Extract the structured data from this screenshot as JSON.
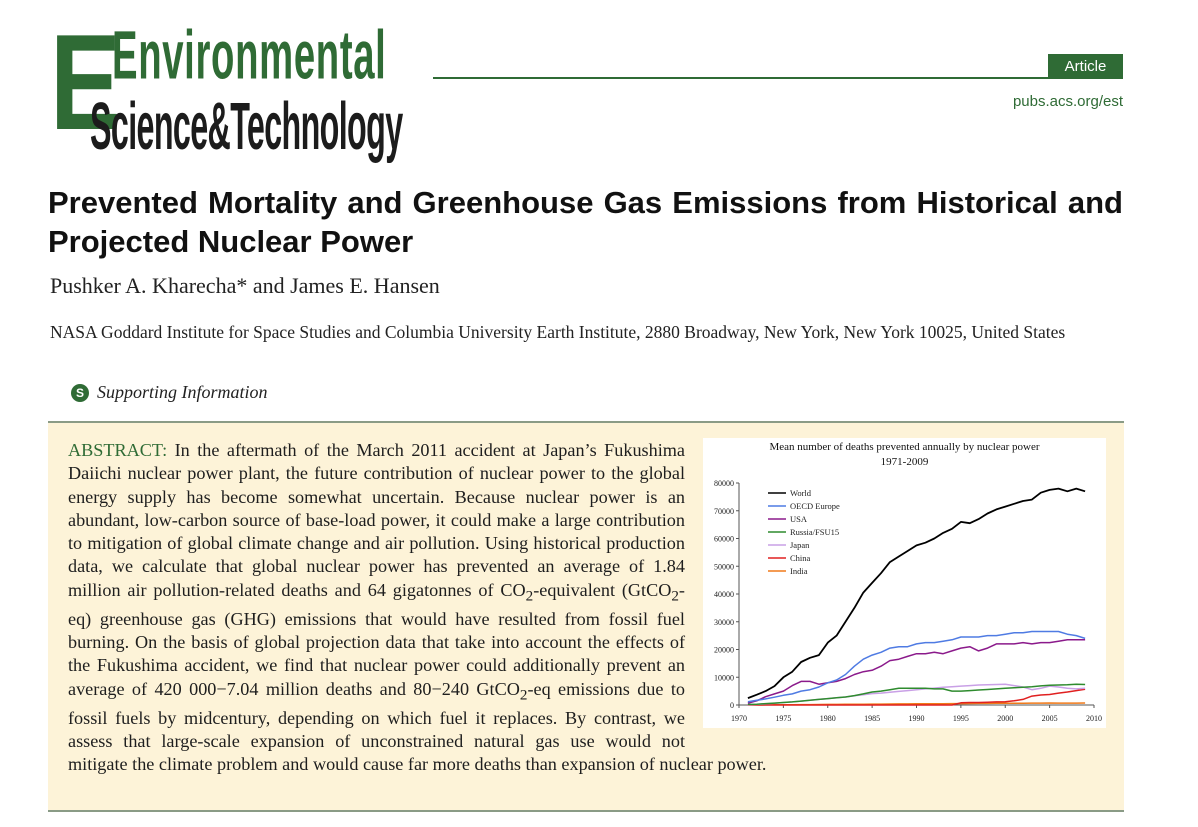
{
  "journal": {
    "logo_line1": "Environmental",
    "logo_line2": "Science&Technology",
    "badge": "Article",
    "url": "pubs.acs.org/est"
  },
  "paper": {
    "title": "Prevented Mortality and Greenhouse Gas Emissions from Historical and Projected Nuclear Power",
    "authors": "Pushker A. Kharecha* and James E. Hansen",
    "affiliation": "NASA Goddard Institute for Space Studies and Columbia University Earth Institute, 2880 Broadway, New York, New York 10025, United States",
    "supporting_info": "Supporting Information",
    "supporting_icon": "S"
  },
  "abstract": {
    "label": "ABSTRACT:",
    "part1": " In the aftermath of the March 2011 accident at Japan’s Fukushima Daiichi nuclear power plant, the future contribution of nuclear power to the global energy supply has become somewhat uncertain. Because nuclear power is an abundant, low-carbon source of base-load power, it could make a large contribution to mitigation of global climate change and air pollution. Using historical production data, we calculate that global nuclear power has prevented an average of 1.84 million air pollution-related deaths and 64 gigatonnes of CO",
    "sub1": "2",
    "part2": "-equivalent (GtCO",
    "sub2": "2",
    "part3": "-eq) greenhouse gas (GHG) emissions that would have resulted from fossil fuel burning. On the basis of global projection data that take into account the effects of the Fukushima accident, we find that nuclear power could additionally prevent an average of 420 000−7.04 million deaths and 80−240 GtCO",
    "sub3": "2",
    "part4": "-eq emissions due to fossil fuels by midcentury, depending on which fuel it replaces. By contrast, we assess that large-scale expansion of unconstrained natural gas use would not mitigate the climate problem and would cause far more deaths than expansion of nuclear power."
  },
  "chart_data": {
    "type": "line",
    "title": "Mean number of deaths prevented annually by nuclear power",
    "subtitle": "1971-2009",
    "xlabel": "",
    "ylabel": "",
    "xlim": [
      1970,
      2010
    ],
    "ylim": [
      0,
      80000
    ],
    "x_ticks": [
      1970,
      1975,
      1980,
      1985,
      1990,
      1995,
      2000,
      2005,
      2010
    ],
    "y_ticks": [
      0,
      10000,
      20000,
      30000,
      40000,
      50000,
      60000,
      70000,
      80000
    ],
    "grid": false,
    "legend_position": "top-left",
    "x": [
      1971,
      1972,
      1973,
      1974,
      1975,
      1976,
      1977,
      1978,
      1979,
      1980,
      1981,
      1982,
      1983,
      1984,
      1985,
      1986,
      1987,
      1988,
      1989,
      1990,
      1991,
      1992,
      1993,
      1994,
      1995,
      1996,
      1997,
      1998,
      1999,
      2000,
      2001,
      2002,
      2003,
      2004,
      2005,
      2006,
      2007,
      2008,
      2009
    ],
    "series": [
      {
        "name": "World",
        "color": "#000000",
        "values": [
          2500,
          3700,
          5000,
          6800,
          10000,
          12000,
          15500,
          17000,
          18000,
          22500,
          25000,
          30000,
          35000,
          40500,
          44000,
          47500,
          51500,
          53500,
          55500,
          57500,
          58500,
          60000,
          62000,
          63500,
          66000,
          65500,
          67000,
          69000,
          70500,
          71500,
          72500,
          73500,
          74000,
          76500,
          77500,
          78000,
          77000,
          78000,
          77000
        ]
      },
      {
        "name": "OECD Europe",
        "color": "#4f7be3",
        "values": [
          1200,
          1700,
          2200,
          2800,
          3500,
          4000,
          5000,
          5500,
          6500,
          8000,
          9000,
          11000,
          14000,
          16500,
          18000,
          19000,
          20500,
          21000,
          21000,
          22000,
          22500,
          22500,
          23000,
          23500,
          24500,
          24500,
          24500,
          25000,
          25000,
          25500,
          26000,
          26000,
          26500,
          26500,
          26500,
          26500,
          25500,
          25000,
          24000
        ]
      },
      {
        "name": "USA",
        "color": "#8b1a8b",
        "values": [
          700,
          1500,
          3000,
          4000,
          5000,
          7000,
          8500,
          8500,
          7500,
          8000,
          8500,
          9500,
          11000,
          12000,
          12500,
          14000,
          16000,
          16500,
          17500,
          18500,
          18500,
          19000,
          18500,
          19500,
          20500,
          21000,
          19500,
          20500,
          22000,
          22000,
          22000,
          22500,
          22000,
          22500,
          22500,
          23000,
          23500,
          23500,
          23500
        ]
      },
      {
        "name": "Russia/FSU15",
        "color": "#2e8b2e",
        "values": [
          200,
          300,
          500,
          700,
          900,
          1100,
          1400,
          1700,
          2000,
          2300,
          2600,
          2900,
          3400,
          4000,
          4700,
          5000,
          5500,
          6000,
          6000,
          6000,
          6000,
          5800,
          5800,
          5000,
          5000,
          5200,
          5400,
          5600,
          5800,
          6000,
          6200,
          6400,
          6600,
          6900,
          7100,
          7200,
          7300,
          7500,
          7400
        ]
      },
      {
        "name": "Japan",
        "color": "#c9a0e6",
        "values": [
          100,
          200,
          400,
          600,
          900,
          1100,
          1400,
          1700,
          2000,
          2300,
          2600,
          2900,
          3300,
          3700,
          4100,
          4300,
          4600,
          4900,
          5200,
          5500,
          5800,
          6100,
          6400,
          6600,
          6800,
          7000,
          7200,
          7300,
          7400,
          7500,
          7000,
          6500,
          5500,
          6000,
          6800,
          6500,
          6000,
          5800,
          6000
        ]
      },
      {
        "name": "China",
        "color": "#e02020",
        "values": [
          0,
          0,
          0,
          0,
          0,
          0,
          0,
          0,
          0,
          0,
          0,
          0,
          0,
          0,
          0,
          0,
          0,
          0,
          0,
          0,
          0,
          0,
          0,
          0,
          800,
          900,
          900,
          1000,
          1100,
          1200,
          1500,
          2000,
          3200,
          3600,
          3800,
          4300,
          4700,
          5200,
          5700
        ]
      },
      {
        "name": "India",
        "color": "#f07a1a",
        "values": [
          20,
          40,
          60,
          80,
          100,
          120,
          140,
          160,
          180,
          200,
          220,
          250,
          280,
          300,
          320,
          340,
          360,
          380,
          400,
          420,
          440,
          460,
          480,
          500,
          520,
          540,
          560,
          580,
          600,
          620,
          640,
          660,
          680,
          700,
          720,
          700,
          680,
          700,
          720
        ]
      }
    ]
  }
}
